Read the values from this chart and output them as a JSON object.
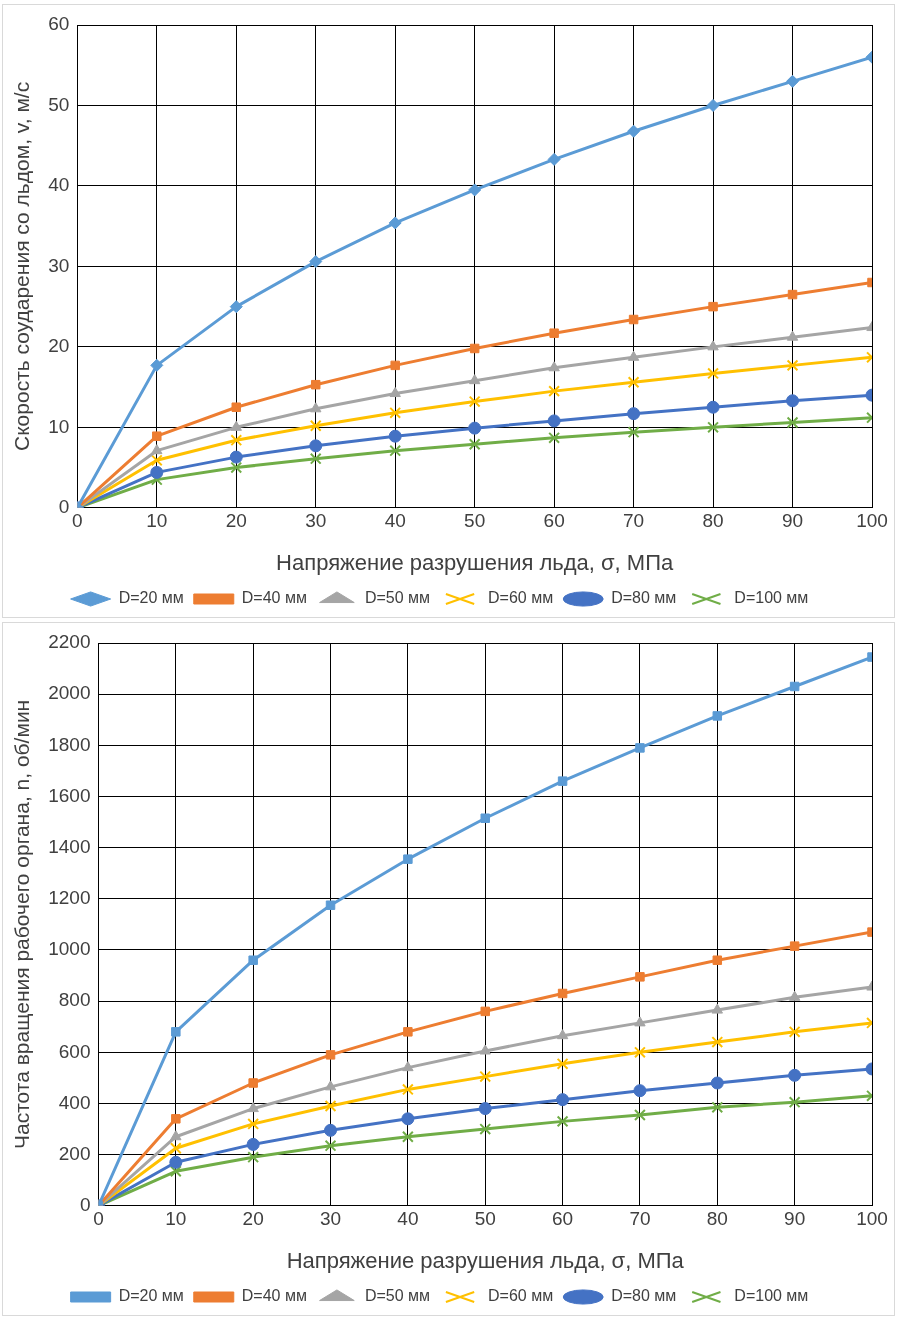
{
  "chart_data": [
    {
      "type": "line",
      "xlabel": "Напряжение разрушения льда, σ, МПа",
      "ylabel": "Скорость соударения со льдом, v, м/с",
      "x": [
        0,
        10,
        20,
        30,
        40,
        50,
        60,
        70,
        80,
        90,
        100
      ],
      "xlim": [
        0,
        100
      ],
      "xticks": [
        0,
        10,
        20,
        30,
        40,
        50,
        60,
        70,
        80,
        90,
        100
      ],
      "ylim": [
        0,
        60
      ],
      "yticks": [
        0,
        10,
        20,
        30,
        40,
        50,
        60
      ],
      "grid": true,
      "legend": "bottom",
      "line_style": "solid",
      "series": [
        {
          "name": "D=20 мм",
          "color": "#5b9bd5",
          "marker": "diamond",
          "values": [
            0,
            17.7,
            25,
            30.6,
            35.4,
            39.5,
            43.3,
            46.8,
            50,
            53,
            56
          ]
        },
        {
          "name": "D=40 мм",
          "color": "#ed7d31",
          "marker": "square",
          "values": [
            0,
            8.9,
            12.5,
            15.3,
            17.7,
            19.8,
            21.7,
            23.4,
            25,
            26.5,
            28
          ]
        },
        {
          "name": "D=50 мм",
          "color": "#a5a5a5",
          "marker": "triangle",
          "values": [
            0,
            7.1,
            10,
            12.3,
            14.2,
            15.8,
            17.4,
            18.7,
            20,
            21.2,
            22.4
          ]
        },
        {
          "name": "D=60 мм",
          "color": "#ffc000",
          "marker": "cross",
          "values": [
            0,
            5.9,
            8.4,
            10.2,
            11.8,
            13.2,
            14.5,
            15.6,
            16.7,
            17.7,
            18.7
          ]
        },
        {
          "name": "D=80 мм",
          "color": "#4472c4",
          "marker": "circle",
          "values": [
            0,
            4.4,
            6.3,
            7.7,
            8.9,
            9.9,
            10.8,
            11.7,
            12.5,
            13.3,
            14
          ]
        },
        {
          "name": "D=100 мм",
          "color": "#70ad47",
          "marker": "cross",
          "values": [
            0,
            3.5,
            5,
            6.1,
            7.1,
            7.9,
            8.7,
            9.4,
            10,
            10.6,
            11.2
          ]
        }
      ]
    },
    {
      "type": "line",
      "xlabel": "Напряжение разрушения льда, σ, МПа",
      "ylabel": "Частота вращения рабочего органа, n, об/мин",
      "x": [
        0,
        10,
        20,
        30,
        40,
        50,
        60,
        70,
        80,
        90,
        100
      ],
      "xlim": [
        0,
        100
      ],
      "xticks": [
        0,
        10,
        20,
        30,
        40,
        50,
        60,
        70,
        80,
        90,
        100
      ],
      "ylim": [
        0,
        2200
      ],
      "yticks": [
        0,
        200,
        400,
        600,
        800,
        1000,
        1200,
        1400,
        1600,
        1800,
        2000,
        2200
      ],
      "grid": true,
      "legend": "bottom",
      "line_style": "solid",
      "series": [
        {
          "name": "D=20 мм",
          "color": "#5b9bd5",
          "marker": "square",
          "values": [
            0,
            680,
            960,
            1175,
            1355,
            1515,
            1660,
            1790,
            1915,
            2030,
            2145
          ]
        },
        {
          "name": "D=40 мм",
          "color": "#ed7d31",
          "marker": "square",
          "values": [
            0,
            340,
            480,
            590,
            680,
            760,
            830,
            895,
            960,
            1015,
            1070
          ]
        },
        {
          "name": "D=50 мм",
          "color": "#a5a5a5",
          "marker": "triangle",
          "values": [
            0,
            270,
            380,
            465,
            540,
            605,
            665,
            715,
            765,
            815,
            855
          ]
        },
        {
          "name": "D=60 мм",
          "color": "#ffc000",
          "marker": "cross",
          "values": [
            0,
            225,
            320,
            390,
            455,
            505,
            555,
            600,
            640,
            680,
            715
          ]
        },
        {
          "name": "D=80 мм",
          "color": "#4472c4",
          "marker": "circle",
          "values": [
            0,
            170,
            240,
            295,
            340,
            380,
            415,
            450,
            480,
            510,
            535
          ]
        },
        {
          "name": "D=100 мм",
          "color": "#70ad47",
          "marker": "cross",
          "values": [
            0,
            135,
            190,
            235,
            270,
            300,
            330,
            355,
            385,
            405,
            430
          ]
        }
      ]
    }
  ]
}
